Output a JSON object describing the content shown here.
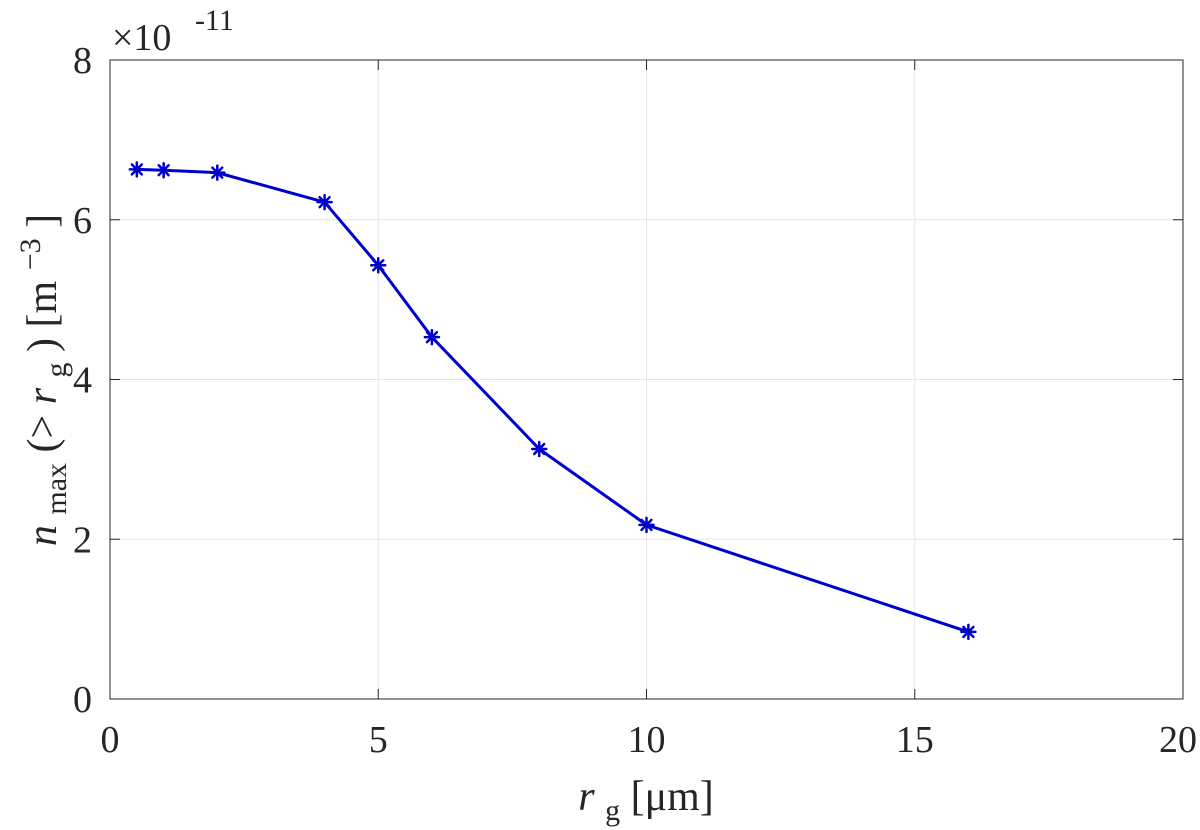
{
  "chart_data": {
    "type": "line",
    "title": "",
    "xlabel": "r_g [μm]",
    "ylabel": "n_max(>r_g) [m^-3]",
    "xlim": [
      0,
      20
    ],
    "ylim": [
      0,
      8
    ],
    "xticks": [
      0,
      5,
      10,
      15,
      20
    ],
    "yticks": [
      0,
      2,
      4,
      6,
      8
    ],
    "xtick_labels": [
      "0",
      "5",
      "10",
      "15",
      "20"
    ],
    "ytick_labels": [
      "0",
      "2",
      "4",
      "6",
      "8"
    ],
    "y_multiplier": "×10",
    "y_multiplier_exponent": "-11",
    "grid": true,
    "series": [
      {
        "color": "#0000cd",
        "marker": "asterisk",
        "x": [
          0.5,
          1,
          2,
          4,
          5,
          6,
          8,
          10,
          16
        ],
        "y": [
          6.63,
          6.62,
          6.59,
          6.22,
          5.43,
          4.53,
          3.13,
          2.18,
          0.84
        ]
      }
    ]
  },
  "labels": {
    "x_main": "r",
    "x_sub": "g",
    "x_unit": " [μm]",
    "y_main": "n",
    "y_sub": "max",
    "y_mid_open": "(> ",
    "y_r": "r",
    "y_r_sub": "g",
    "y_mid_close": ") [m",
    "y_exp": "−3",
    "y_end": "]"
  }
}
